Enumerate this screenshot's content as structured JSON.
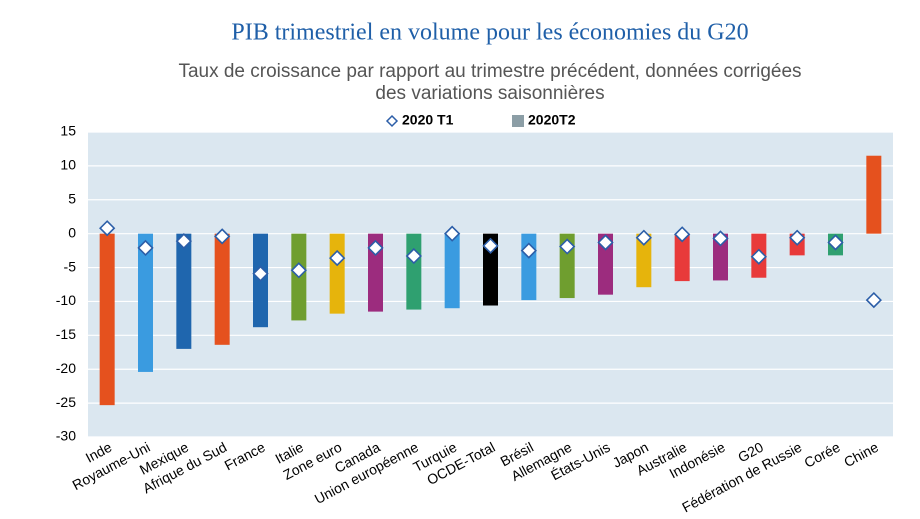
{
  "chart_data": {
    "type": "bar",
    "title": "PIB trimestriel en volume pour les économies du G20",
    "subtitle": [
      "Taux de croissance par rapport au trimestre précédent, données corrigées",
      "des variations saisonnières"
    ],
    "categories": [
      "Inde",
      "Royaume-Uni",
      "Mexique",
      "Afrique du Sud",
      "France",
      "Italie",
      "Zone euro",
      "Canada",
      "Union européenne",
      "Turquie",
      "OCDE-Total",
      "Brésil",
      "Allemagne",
      "États-Unis",
      "Japon",
      "Australie",
      "Indonésie",
      "G20",
      "Fédération de Russie",
      "Corée",
      "Chine"
    ],
    "series": [
      {
        "name": "2020 T1",
        "color": "#2c5ea8",
        "marker": "diamond",
        "values": [
          0.8,
          -2.1,
          -1.1,
          -0.4,
          -5.9,
          -5.4,
          -3.6,
          -2.1,
          -3.3,
          0.0,
          -1.8,
          -2.5,
          -1.9,
          -1.3,
          -0.6,
          -0.1,
          -0.7,
          -3.4,
          -0.6,
          -1.3,
          -9.8
        ]
      },
      {
        "name": "2020T2",
        "color": "#8c9ea6",
        "marker": "bar",
        "colors": [
          "#e5511e",
          "#3a9be0",
          "#1f66ae",
          "#e5511e",
          "#1f66ae",
          "#6f9e2f",
          "#e6b40c",
          "#9c2c7e",
          "#2fa070",
          "#3a9be0",
          "#000000",
          "#3a9be0",
          "#6f9e2f",
          "#9c2c7e",
          "#e6b40c",
          "#e83a3a",
          "#9c2c7e",
          "#e83a3a",
          "#e83a3a",
          "#2fa070",
          "#e5511e"
        ],
        "values": [
          -25.3,
          -20.4,
          -17.0,
          -16.4,
          -13.8,
          -12.8,
          -11.8,
          -11.5,
          -11.2,
          -11.0,
          -10.6,
          -9.8,
          -9.5,
          -9.0,
          -7.9,
          -7.0,
          -6.9,
          -6.5,
          -3.2,
          -3.2,
          11.5
        ]
      }
    ],
    "ylim": [
      -30,
      15
    ],
    "yticks": [
      -30,
      -25,
      -20,
      -15,
      -10,
      -5,
      0,
      5,
      10,
      15
    ],
    "grid": true
  }
}
